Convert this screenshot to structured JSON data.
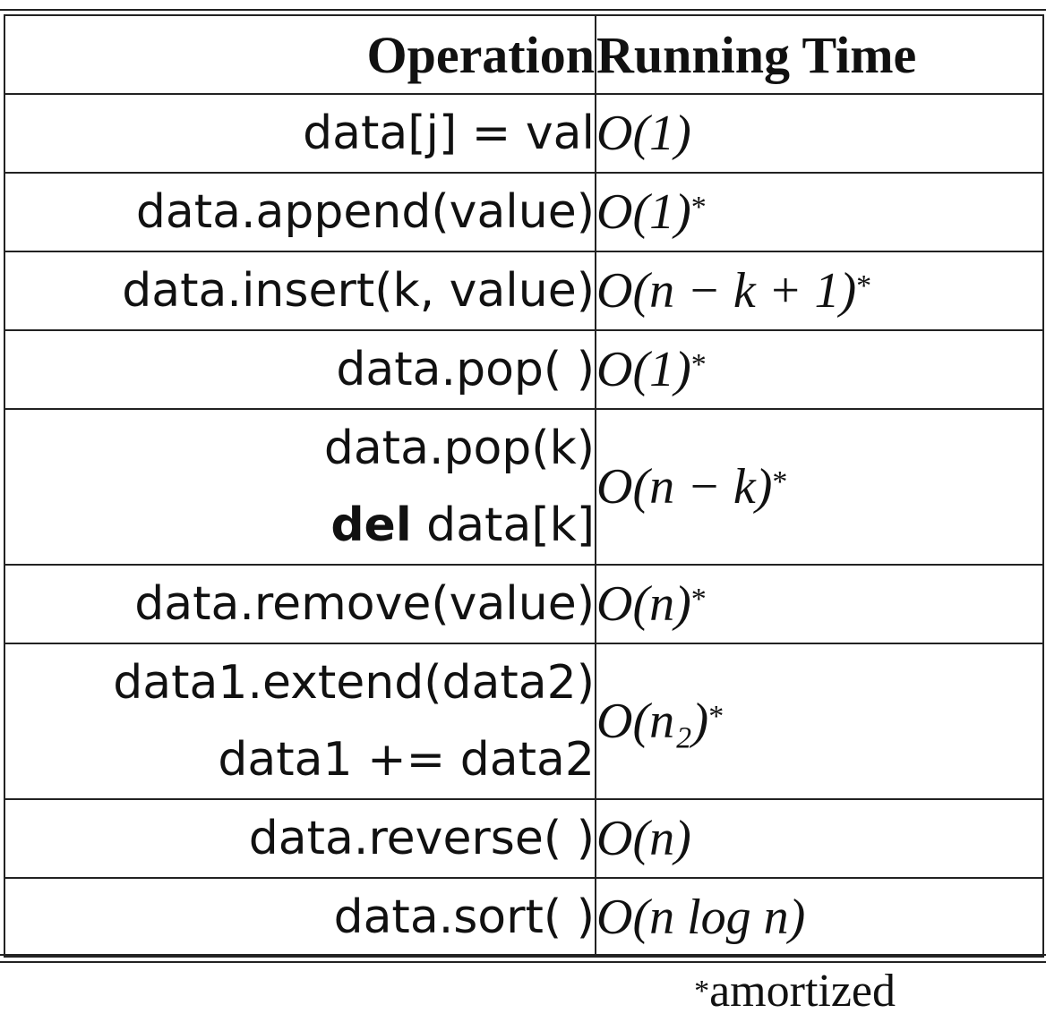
{
  "headers": {
    "operation": "Operation",
    "running_time": "Running Time"
  },
  "rows": [
    {
      "ops": [
        "data[j] = val"
      ],
      "time": "O(1)",
      "mark": ""
    },
    {
      "ops": [
        "data.append(value)"
      ],
      "time": "O(1)",
      "mark": "*"
    },
    {
      "ops": [
        "data.insert(k, value)"
      ],
      "time": "O(n − k + 1)",
      "mark": "*"
    },
    {
      "ops": [
        "data.pop( )"
      ],
      "time": "O(1)",
      "mark": "*"
    },
    {
      "ops": [
        "data.pop(k)"
      ],
      "keyword": "del",
      "ops2": " data[k]",
      "time": "O(n − k)",
      "mark": "*"
    },
    {
      "ops": [
        "data.remove(value)"
      ],
      "time": "O(n)",
      "mark": "*"
    },
    {
      "ops": [
        "data1.extend(data2)",
        "data1 += data2"
      ],
      "time": "O(n₂)",
      "mark": "*"
    },
    {
      "ops": [
        "data.reverse( )"
      ],
      "time": "O(n)",
      "mark": ""
    },
    {
      "ops": [
        "data.sort( )"
      ],
      "time": "O(n log n)",
      "mark": ""
    }
  ],
  "footnote": {
    "mark": "*",
    "text": "amortized"
  }
}
